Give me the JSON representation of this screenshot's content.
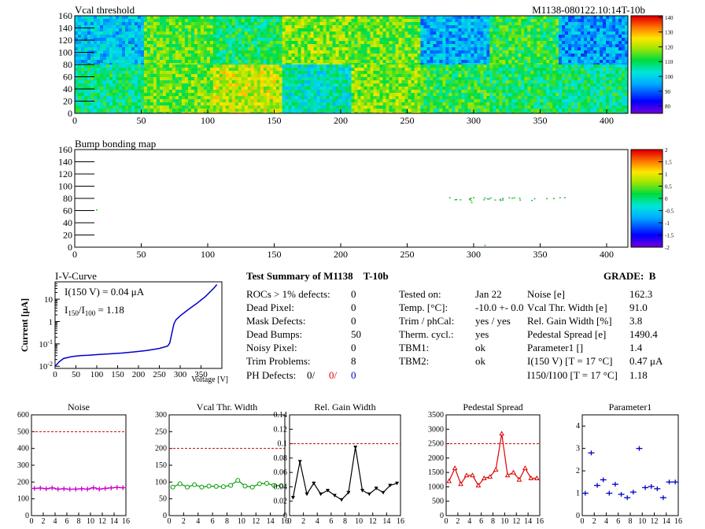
{
  "header": {
    "heatmap_title": "Vcal threshold",
    "module_id": "M1138-080122.10:14T-10b",
    "bump_title": "Bump bonding map",
    "iv_title": "I-V-Curve"
  },
  "summary": {
    "title_prefix": "Test Summary of M1138",
    "title_suffix": "T-10b",
    "grade_label": "GRADE:",
    "grade": "B",
    "defects": [
      {
        "label": "ROCs > 1% defects:",
        "value": "0"
      },
      {
        "label": "Dead Pixel:",
        "value": "0"
      },
      {
        "label": "Mask Defects:",
        "value": "0"
      },
      {
        "label": "Dead Bumps:",
        "value": "50"
      },
      {
        "label": "Noisy Pixel:",
        "value": "0"
      },
      {
        "label": "Trim Problems:",
        "value": "8"
      }
    ],
    "ph_defects": {
      "label": "PH Defects:",
      "v1": "0/",
      "v2": "0/",
      "v3": "0",
      "c1": "#000000",
      "c2": "#e00000",
      "c3": "#0000cc"
    },
    "conditions": [
      {
        "label": "Tested on:",
        "value": "Jan 22"
      },
      {
        "label": "Temp. [°C]:",
        "value": "-10.0 +- 0.0"
      },
      {
        "label": "Trim / phCal:",
        "value": "yes / yes"
      },
      {
        "label": "Therm. cycl.:",
        "value": "yes"
      },
      {
        "label": "TBM1:",
        "value": "ok"
      },
      {
        "label": "TBM2:",
        "value": "ok"
      }
    ],
    "results": [
      {
        "label": "Noise [e]",
        "value": "162.3"
      },
      {
        "label": "Vcal Thr. Width [e]",
        "value": "91.0"
      },
      {
        "label": "Rel. Gain Width [%]",
        "value": "3.8"
      },
      {
        "label": "Pedestal Spread [e]",
        "value": "1490.4"
      },
      {
        "label": "Parameter1 []",
        "value": "1.4"
      },
      {
        "label": "I(150 V)  [T = 17 °C]",
        "value": "0.47 μA"
      },
      {
        "label": "I150/I100  [T = 17 °C]",
        "value": "1.18"
      }
    ]
  },
  "chart_data": [
    {
      "type": "heatmap",
      "title": "Vcal threshold",
      "xlim": [
        0,
        416
      ],
      "ylim": [
        0,
        160
      ],
      "xticks": [
        0,
        50,
        100,
        150,
        200,
        250,
        300,
        350,
        400
      ],
      "yticks": [
        0,
        20,
        40,
        60,
        80,
        100,
        120,
        140,
        160
      ],
      "colorbar_ticks": [
        80,
        90,
        100,
        110,
        120,
        130,
        140
      ],
      "colorbar_range": [
        75,
        141
      ],
      "roc_mean_top": [
        98,
        115,
        110,
        118,
        116,
        96,
        112,
        94
      ],
      "roc_mean_bottom": [
        108,
        116,
        122,
        104,
        118,
        112,
        110,
        108
      ]
    },
    {
      "type": "heatmap",
      "title": "Bump bonding map",
      "xlim": [
        0,
        416
      ],
      "ylim": [
        0,
        160
      ],
      "xticks": [
        0,
        50,
        100,
        150,
        200,
        250,
        300,
        350,
        400
      ],
      "yticks": [
        0,
        20,
        40,
        60,
        80,
        100,
        120,
        140,
        160
      ],
      "colorbar_ticks": [
        -2,
        -1.5,
        -1,
        -0.5,
        0,
        0.5,
        1,
        1.5,
        2
      ],
      "colorbar_range": [
        -2,
        2
      ]
    },
    {
      "type": "line",
      "title": "I-V-Curve",
      "xlabel": "Voltage [V]",
      "ylabel": "Current [μA]",
      "xlim": [
        0,
        400
      ],
      "ylim": [
        0.008,
        60
      ],
      "log_y": true,
      "xticks": [
        0,
        50,
        100,
        150,
        200,
        250,
        300,
        350
      ],
      "yticks": [
        0.01,
        0.1,
        1,
        10
      ],
      "ytick_labels": [
        "10-2",
        "10-1",
        "1",
        "10"
      ],
      "annotation_current": "I(150 V) = 0.04 μA",
      "annotation_ratio": "I150/I100 =  1.18",
      "x": [
        0,
        10,
        20,
        40,
        60,
        80,
        100,
        130,
        160,
        190,
        220,
        250,
        270,
        275,
        280,
        285,
        290,
        300,
        320,
        340,
        360,
        380,
        388
      ],
      "y": [
        0.01,
        0.016,
        0.022,
        0.027,
        0.03,
        0.031,
        0.033,
        0.036,
        0.039,
        0.044,
        0.051,
        0.063,
        0.08,
        0.11,
        0.3,
        0.8,
        1.2,
        1.8,
        3.5,
        6.5,
        13,
        30,
        45
      ]
    },
    {
      "type": "line",
      "title": "Noise",
      "xlim": [
        0,
        16
      ],
      "ylim": [
        0,
        600
      ],
      "xticks": [
        0,
        2,
        4,
        6,
        8,
        10,
        12,
        14,
        16
      ],
      "yticks": [
        0,
        100,
        200,
        300,
        400,
        500,
        600
      ],
      "threshold": 500,
      "color": "#cc00cc",
      "marker": "cross",
      "x": [
        0,
        1,
        2,
        3,
        4,
        5,
        6,
        7,
        8,
        9,
        10,
        11,
        12,
        13,
        14,
        15
      ],
      "y": [
        162,
        164,
        160,
        165,
        158,
        160,
        157,
        158,
        160,
        158,
        166,
        158,
        162,
        165,
        168,
        166
      ]
    },
    {
      "type": "line",
      "title": "Vcal Thr. Width",
      "xlim": [
        0,
        16
      ],
      "ylim": [
        0,
        300
      ],
      "xticks": [
        0,
        2,
        4,
        6,
        8,
        10,
        12,
        14,
        16
      ],
      "yticks": [
        0,
        50,
        100,
        150,
        200,
        250,
        300
      ],
      "threshold": 200,
      "color": "#009900",
      "marker": "circle",
      "x": [
        0,
        1,
        2,
        3,
        4,
        5,
        6,
        7,
        8,
        9,
        10,
        11,
        12,
        13,
        14,
        15
      ],
      "y": [
        85,
        95,
        85,
        92,
        85,
        88,
        87,
        86,
        90,
        105,
        88,
        85,
        95,
        96,
        90,
        89
      ]
    },
    {
      "type": "line",
      "title": "Rel. Gain Width",
      "xlim": [
        0,
        16
      ],
      "ylim": [
        0,
        0.14
      ],
      "xticks": [
        0,
        2,
        4,
        6,
        8,
        10,
        12,
        14,
        16
      ],
      "yticks": [
        0,
        0.02,
        0.04,
        0.06,
        0.08,
        0.1,
        0.12,
        0.14
      ],
      "threshold": 0.1,
      "color": "#000000",
      "marker": "triangle-down",
      "x": [
        0,
        1,
        2,
        3,
        4,
        5,
        6,
        7,
        8,
        9,
        10,
        11,
        12,
        13,
        14,
        15
      ],
      "y": [
        0.025,
        0.075,
        0.03,
        0.045,
        0.03,
        0.035,
        0.028,
        0.022,
        0.032,
        0.095,
        0.035,
        0.03,
        0.038,
        0.032,
        0.042,
        0.045
      ]
    },
    {
      "type": "line",
      "title": "Pedestal Spread",
      "xlim": [
        0,
        16
      ],
      "ylim": [
        0,
        3500
      ],
      "xticks": [
        0,
        2,
        4,
        6,
        8,
        10,
        12,
        14,
        16
      ],
      "yticks": [
        0,
        500,
        1000,
        1500,
        2000,
        2500,
        3000,
        3500
      ],
      "threshold": 2500,
      "color": "#dd0000",
      "marker": "triangle-up",
      "x": [
        0,
        1,
        2,
        3,
        4,
        5,
        6,
        7,
        8,
        9,
        10,
        11,
        12,
        13,
        14,
        15
      ],
      "y": [
        1200,
        1650,
        1100,
        1400,
        1400,
        1050,
        1300,
        1350,
        1600,
        2850,
        1400,
        1500,
        1250,
        1650,
        1300,
        1300
      ]
    },
    {
      "type": "scatter",
      "title": "Parameter1",
      "xlim": [
        0,
        16
      ],
      "ylim": [
        0,
        4.5
      ],
      "xticks": [
        0,
        2,
        4,
        6,
        8,
        10,
        12,
        14,
        16
      ],
      "yticks": [
        0,
        1,
        2,
        3,
        4
      ],
      "color": "#0000cc",
      "marker": "cross",
      "x": [
        0,
        1,
        2,
        3,
        4,
        5,
        6,
        7,
        8,
        9,
        10,
        11,
        12,
        13,
        14,
        15
      ],
      "y": [
        1.0,
        2.8,
        1.35,
        1.6,
        1.0,
        1.4,
        0.95,
        0.8,
        1.05,
        3.0,
        1.25,
        1.3,
        1.2,
        0.8,
        1.5,
        1.5
      ]
    }
  ]
}
